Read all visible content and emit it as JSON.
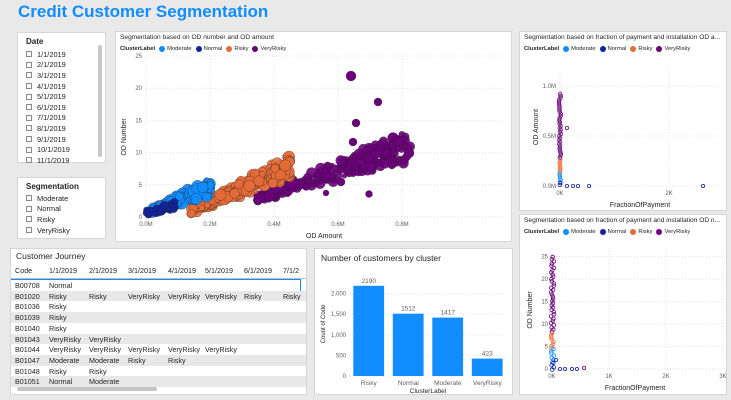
{
  "title": "Credit Customer Segmentation",
  "colors": {
    "moderate": "#118dff",
    "normal": "#12239e",
    "risky": "#e66c37",
    "veryrisky": "#6b007b",
    "accent": "#118dff"
  },
  "date_slicer": {
    "label": "Date",
    "items": [
      "1/1/2019",
      "2/1/2019",
      "3/1/2019",
      "4/1/2019",
      "5/1/2019",
      "6/1/2019",
      "7/1/2019",
      "8/1/2019",
      "9/1/2019",
      "10/1/2019",
      "11/1/2019"
    ]
  },
  "segmentation_slicer": {
    "label": "Segmentation",
    "items": [
      "Moderate",
      "Normal",
      "Risky",
      "VeryRisky"
    ]
  },
  "legend": {
    "title": "ClusterLabel",
    "items": [
      {
        "label": "Moderate",
        "color": "#118dff"
      },
      {
        "label": "Normal",
        "color": "#12239e"
      },
      {
        "label": "Risky",
        "color": "#e66c37"
      },
      {
        "label": "VeryRisky",
        "color": "#6b007b"
      }
    ]
  },
  "scatter_main": {
    "title": "Segmentation based on OD number and OD amount",
    "xlabel": "OD Amount",
    "ylabel": "OD Number",
    "xticks": [
      "0.0M",
      "0.2M",
      "0.4M",
      "0.6M",
      "0.8M"
    ],
    "yticks": [
      "0",
      "5",
      "10",
      "15",
      "20",
      "25"
    ]
  },
  "scatter_top_right": {
    "title": "Segmentation based on fraction of payment and installation OD a...",
    "xlabel": "FractionOfPayment",
    "ylabel": "OD Amount",
    "xticks": [
      "0K",
      "2K"
    ],
    "yticks": [
      "0.0M",
      "0.5M",
      "1.0M"
    ]
  },
  "scatter_bottom_right": {
    "title": "Segmentation based on fraction of payment and installation OD n...",
    "xlabel": "FractionOfPayment",
    "ylabel": "OD Number",
    "xticks": [
      "0K",
      "1K",
      "2K",
      "3K"
    ],
    "yticks": [
      "0",
      "5",
      "10",
      "15",
      "20",
      "25"
    ]
  },
  "journey": {
    "title": "Customer Journey",
    "columns": [
      "Code",
      "1/1/2019",
      "2/1/2019",
      "3/1/2019",
      "4/1/2019",
      "5/1/2019",
      "6/1/2019",
      "7/1/2"
    ],
    "rows": [
      [
        "B00708",
        "Normal",
        "",
        "",
        "",
        "",
        "",
        ""
      ],
      [
        "B01020",
        "Risky",
        "Risky",
        "VeryRisky",
        "VeryRisky",
        "VeryRisky",
        "Risky",
        "Risky"
      ],
      [
        "B01036",
        "Risky",
        "",
        "",
        "",
        "",
        "",
        ""
      ],
      [
        "B01039",
        "Risky",
        "",
        "",
        "",
        "",
        "",
        ""
      ],
      [
        "B01040",
        "Risky",
        "",
        "",
        "",
        "",
        "",
        ""
      ],
      [
        "B01043",
        "VeryRisky",
        "VeryRisky",
        "",
        "",
        "",
        "",
        ""
      ],
      [
        "B01044",
        "VeryRisky",
        "VeryRisky",
        "VeryRisky",
        "VeryRisky",
        "VeryRisky",
        "",
        ""
      ],
      [
        "B01047",
        "Moderate",
        "Moderate",
        "Risky",
        "Risky",
        "",
        "",
        ""
      ],
      [
        "B01048",
        "Risky",
        "Risky",
        "",
        "",
        "",
        "",
        ""
      ],
      [
        "B01051",
        "Normal",
        "Moderate",
        "",
        "",
        "",
        "",
        ""
      ]
    ]
  },
  "chart_data": {
    "type": "bar",
    "title": "Number of customers by cluster",
    "categories": [
      "Risky",
      "Normal",
      "Moderate",
      "VeryRisky"
    ],
    "values": [
      2190,
      1512,
      1417,
      423
    ],
    "xlabel": "ClusterLabel",
    "ylabel": "Count of Code",
    "ylim": [
      0,
      2500
    ],
    "yticks": [
      "0",
      "500",
      "1,000",
      "1,500",
      "2,000"
    ],
    "bar_color": "#118dff"
  }
}
